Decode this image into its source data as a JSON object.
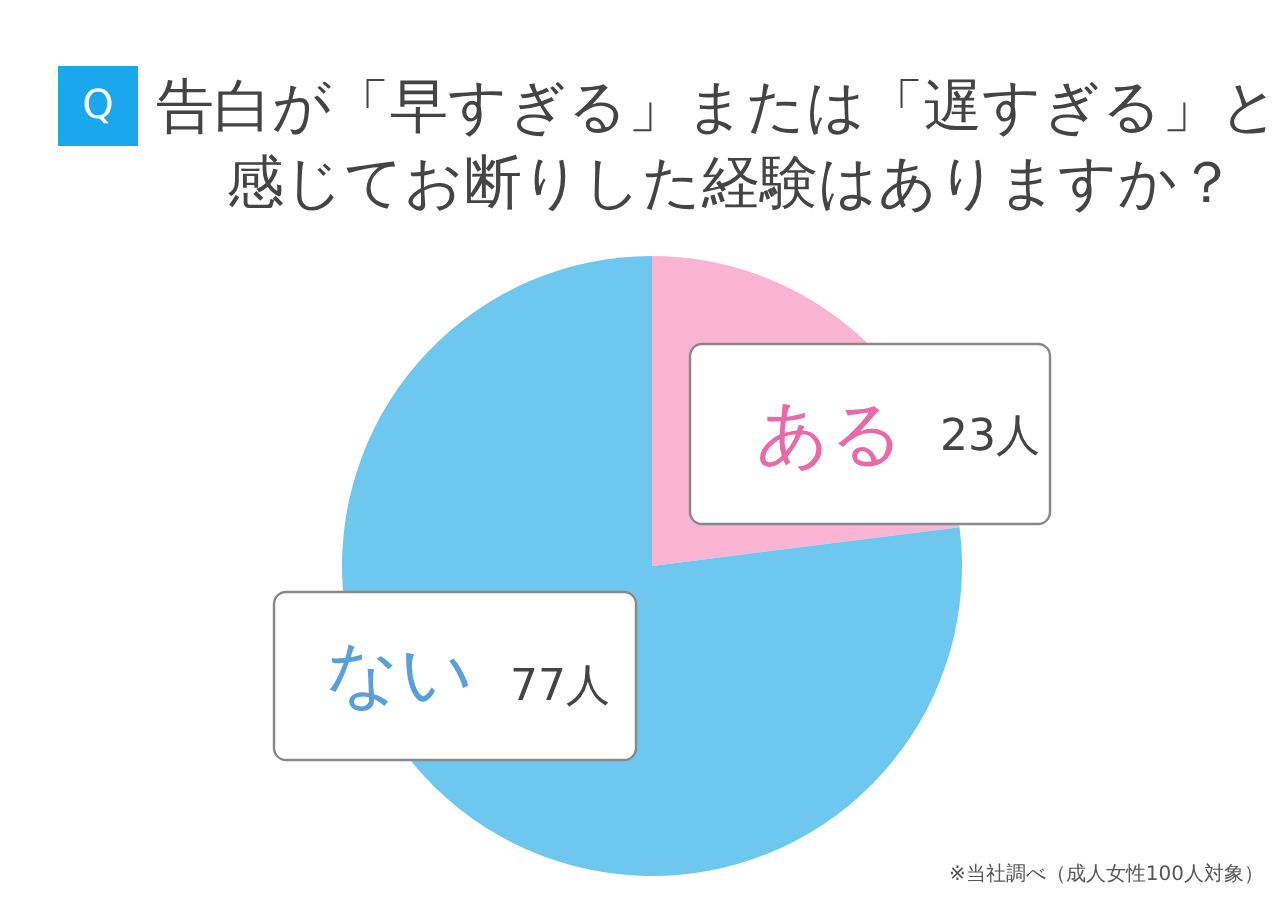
{
  "chart_data": {
    "type": "pie",
    "title": [
      "告白が「早すぎる」または「遅すぎる」と",
      "感じてお断りした経験はありますか？"
    ],
    "categories": [
      "ある",
      "ない"
    ],
    "values": [
      23,
      77
    ],
    "colors": [
      "#f9b4d3",
      "#6ec7ee"
    ],
    "value_labels": [
      "23人",
      "77人"
    ],
    "annotations": [
      "Q",
      "※当社調べ（成人女性100人対象）"
    ]
  }
}
